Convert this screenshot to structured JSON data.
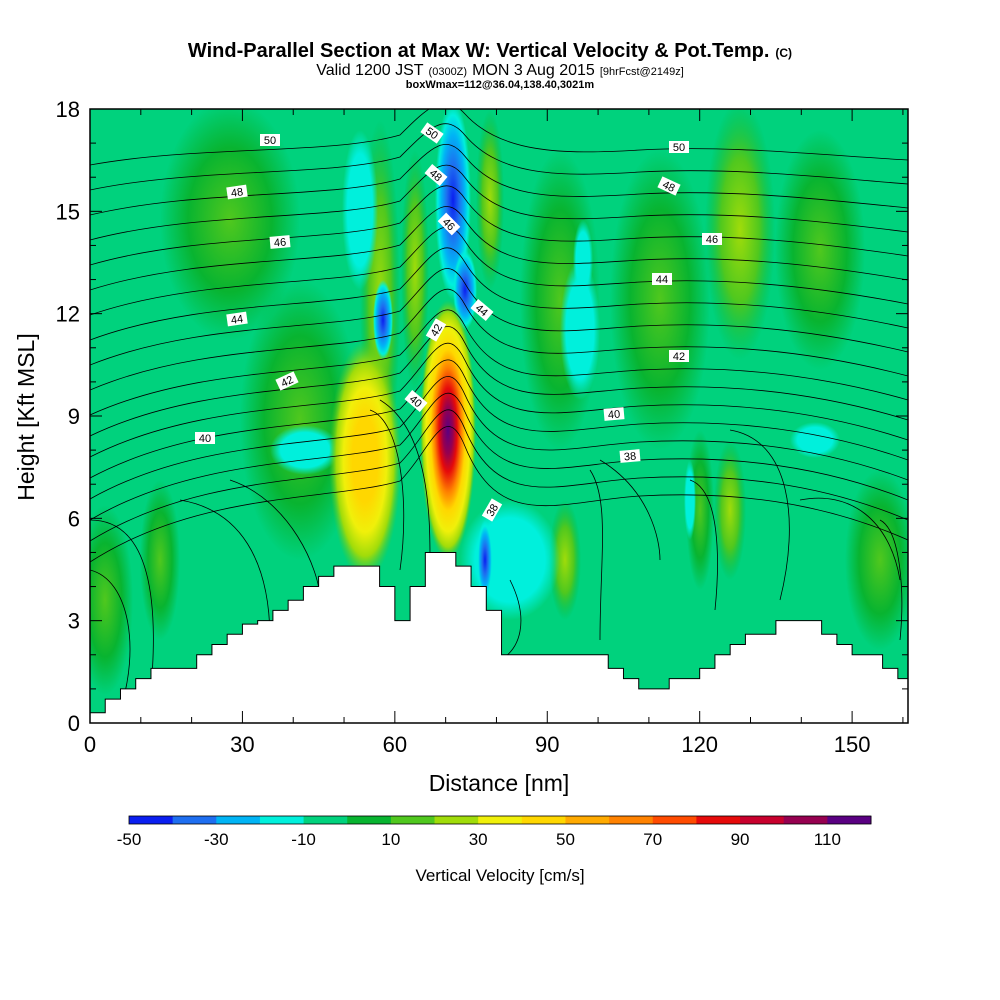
{
  "title": {
    "line1_main": "Wind-Parallel Section at Max W: Vertical Velocity & Pot.Temp.",
    "line1_mark": "(C)",
    "line2_a": "Valid 1200 JST",
    "line2_b": "(0300Z)",
    "line2_c": "MON 3 Aug 2015",
    "line2_d": "[9hrFcst@2149z]",
    "line3": "boxWmax=112@36.04,138.40,3021m"
  },
  "chart_data": {
    "type": "heatmap",
    "xlabel": "Distance [nm]",
    "ylabel": "Height [Kft MSL]",
    "xlim": [
      0,
      161
    ],
    "ylim": [
      0,
      18
    ],
    "xticks": [
      0,
      30,
      60,
      90,
      120,
      150
    ],
    "yticks": [
      0,
      3,
      6,
      9,
      12,
      15,
      18
    ],
    "colorbar": {
      "label": "Vertical Velocity [cm/s]",
      "levels": [
        -50,
        -40,
        -30,
        -20,
        -10,
        0,
        10,
        20,
        30,
        40,
        50,
        60,
        70,
        80,
        90,
        100,
        110,
        120
      ],
      "tick_labels": [
        "-50",
        "-30",
        "-10",
        "10",
        "30",
        "50",
        "70",
        "90",
        "110"
      ],
      "tick_values": [
        -50,
        -30,
        -10,
        10,
        30,
        50,
        70,
        90,
        110
      ],
      "colors": [
        "#0a1ef0",
        "#1e6ef0",
        "#00b4f5",
        "#00f0dc",
        "#00d27d",
        "#08b430",
        "#50c81e",
        "#a0dc0a",
        "#f0f00a",
        "#ffd700",
        "#ffaa00",
        "#ff8200",
        "#ff4b00",
        "#e60a0a",
        "#c8002d",
        "#960050",
        "#5a0082"
      ]
    },
    "theta_contour_labels": [
      "50",
      "48",
      "46",
      "44",
      "42",
      "40",
      "50",
      "48",
      "46",
      "44",
      "42",
      "40",
      "38",
      "50",
      "48",
      "46",
      "44",
      "42",
      "40",
      "38"
    ],
    "terrain_kft": [
      [
        0,
        0.3
      ],
      [
        3,
        0.7
      ],
      [
        6,
        1.0
      ],
      [
        9,
        1.3
      ],
      [
        12,
        1.6
      ],
      [
        15,
        1.6
      ],
      [
        18,
        1.6
      ],
      [
        21,
        2.0
      ],
      [
        24,
        2.3
      ],
      [
        27,
        2.6
      ],
      [
        30,
        2.9
      ],
      [
        33,
        3.0
      ],
      [
        36,
        3.3
      ],
      [
        39,
        3.6
      ],
      [
        42,
        4.0
      ],
      [
        45,
        4.3
      ],
      [
        48,
        4.6
      ],
      [
        51,
        4.6
      ],
      [
        54,
        4.6
      ],
      [
        57,
        4.0
      ],
      [
        60,
        3.0
      ],
      [
        63,
        4.0
      ],
      [
        66,
        5.0
      ],
      [
        69,
        5.0
      ],
      [
        72,
        4.6
      ],
      [
        75,
        4.0
      ],
      [
        78,
        3.3
      ],
      [
        81,
        2.0
      ],
      [
        84,
        2.0
      ],
      [
        87,
        2.0
      ],
      [
        90,
        2.0
      ],
      [
        93,
        2.0
      ],
      [
        96,
        2.0
      ],
      [
        99,
        2.0
      ],
      [
        102,
        1.6
      ],
      [
        105,
        1.3
      ],
      [
        108,
        1.0
      ],
      [
        111,
        1.0
      ],
      [
        114,
        1.3
      ],
      [
        117,
        1.3
      ],
      [
        120,
        1.6
      ],
      [
        123,
        2.0
      ],
      [
        126,
        2.3
      ],
      [
        129,
        2.6
      ],
      [
        132,
        2.6
      ],
      [
        135,
        3.0
      ],
      [
        138,
        3.0
      ],
      [
        141,
        3.0
      ],
      [
        144,
        2.6
      ],
      [
        147,
        2.3
      ],
      [
        150,
        2.0
      ],
      [
        153,
        2.0
      ],
      [
        156,
        1.6
      ],
      [
        159,
        1.3
      ],
      [
        161,
        1.3
      ]
    ]
  }
}
